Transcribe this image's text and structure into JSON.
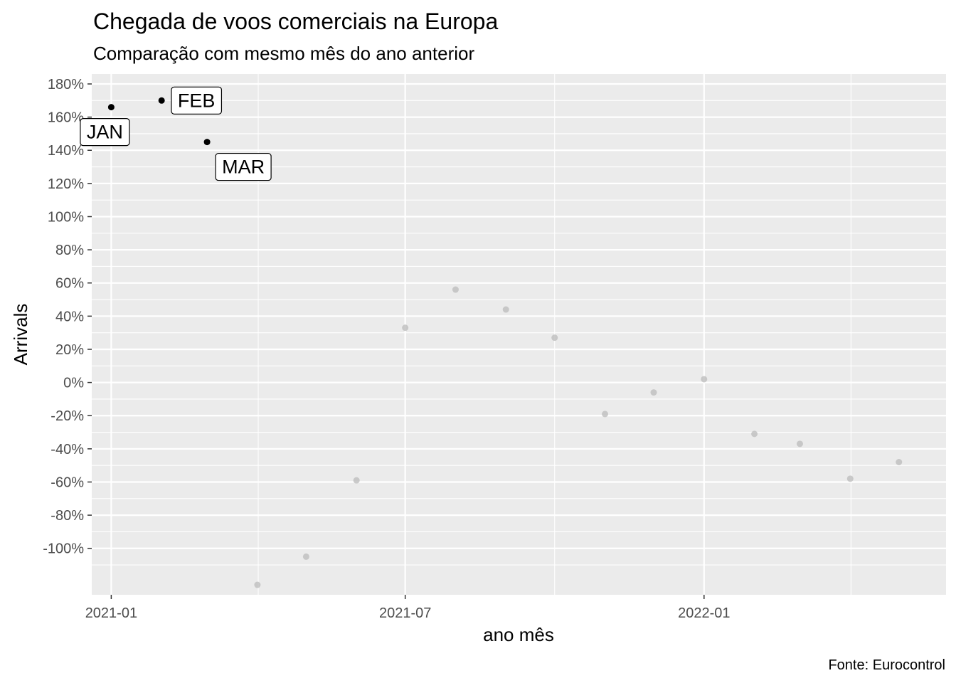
{
  "chart_data": {
    "type": "scatter",
    "title": "Chegada de voos comerciais na Europa",
    "subtitle": "Comparação com mesmo mês do ano anterior",
    "xlabel": "ano mês",
    "ylabel": "Arrivals",
    "caption": "Fonte: Eurocontrol",
    "x_ticks": [
      "2021-01",
      "2021-07",
      "2022-01"
    ],
    "y_ticks": [
      "180%",
      "160%",
      "140%",
      "120%",
      "100%",
      "80%",
      "60%",
      "40%",
      "20%",
      "0%",
      "-20%",
      "-40%",
      "-60%",
      "-80%",
      "-100%"
    ],
    "y_tick_values": [
      180,
      160,
      140,
      120,
      100,
      80,
      60,
      40,
      20,
      0,
      -20,
      -40,
      -60,
      -80,
      -100
    ],
    "ylim": [
      -128,
      186
    ],
    "xlim": [
      "2020-12-20",
      "2022-05-30"
    ],
    "grid": true,
    "highlight_color": "#000000",
    "muted_color": "#bebebe",
    "points": [
      {
        "x": "2021-01-01",
        "y": 166,
        "label": "JAN",
        "highlight": true
      },
      {
        "x": "2021-02-01",
        "y": 170,
        "label": "FEB",
        "highlight": true
      },
      {
        "x": "2021-03-01",
        "y": 145,
        "label": "MAR",
        "highlight": true
      },
      {
        "x": "2021-04-01",
        "y": -122,
        "highlight": false
      },
      {
        "x": "2021-05-01",
        "y": -105,
        "highlight": false
      },
      {
        "x": "2021-06-01",
        "y": -59,
        "highlight": false
      },
      {
        "x": "2021-07-01",
        "y": 33,
        "highlight": false
      },
      {
        "x": "2021-08-01",
        "y": 56,
        "highlight": false
      },
      {
        "x": "2021-09-01",
        "y": 44,
        "highlight": false
      },
      {
        "x": "2021-10-01",
        "y": 27,
        "highlight": false
      },
      {
        "x": "2021-11-01",
        "y": -19,
        "highlight": false
      },
      {
        "x": "2021-12-01",
        "y": -6,
        "highlight": false
      },
      {
        "x": "2022-01-01",
        "y": 2,
        "highlight": false
      },
      {
        "x": "2022-02-01",
        "y": -31,
        "highlight": false
      },
      {
        "x": "2022-03-01",
        "y": -37,
        "highlight": false
      },
      {
        "x": "2022-04-01",
        "y": -58,
        "highlight": false
      },
      {
        "x": "2022-05-01",
        "y": -48,
        "highlight": false
      }
    ]
  }
}
